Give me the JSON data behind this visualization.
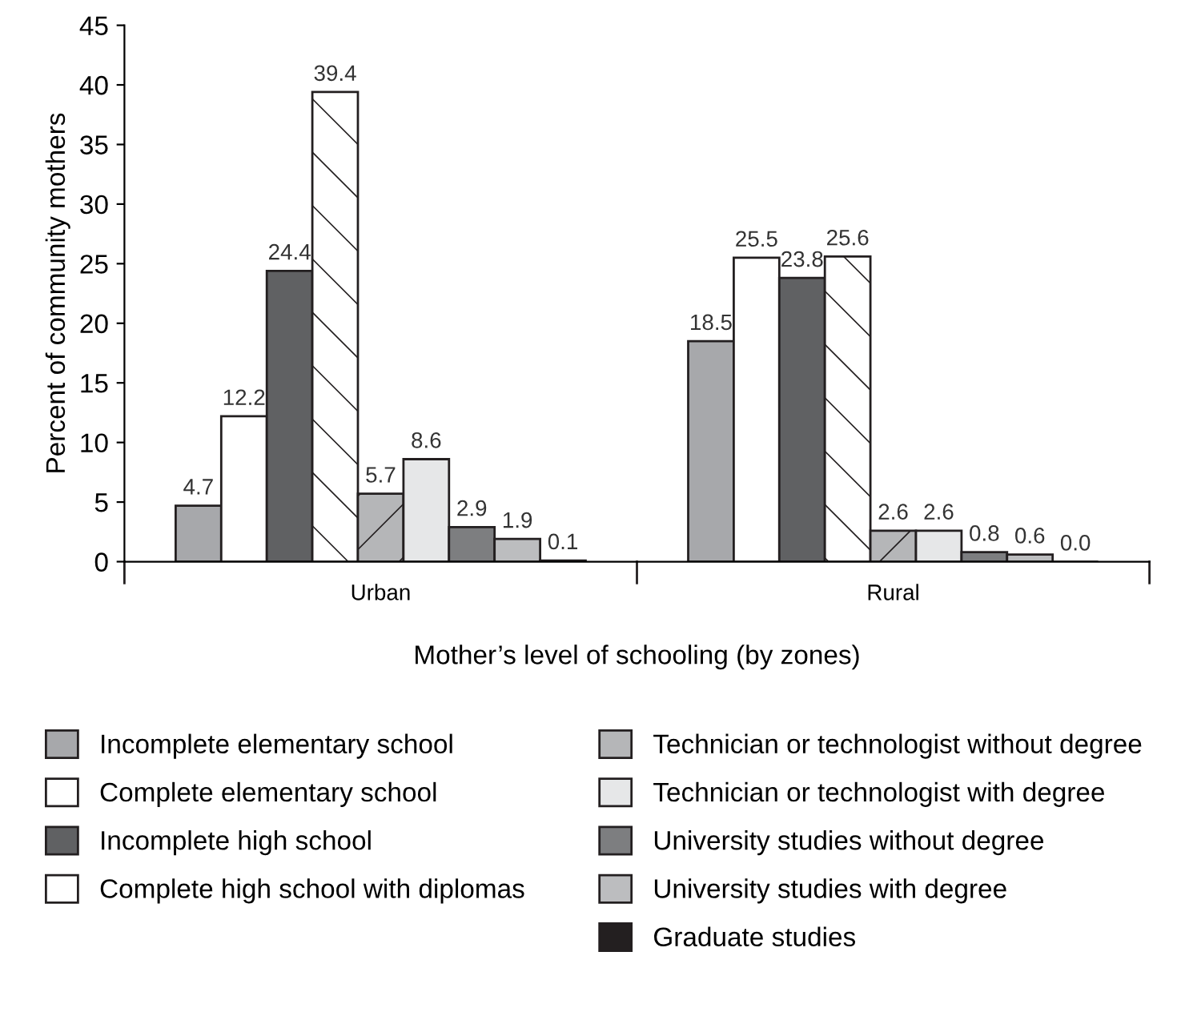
{
  "chart_data": {
    "type": "bar",
    "xlabel": "Mother’s level of schooling (by zones)",
    "ylabel": "Percent of community mothers",
    "categories": [
      "Urban",
      "Rural"
    ],
    "series": [
      {
        "name": "Incomplete elementary school",
        "color": "#a7a8ab",
        "values": [
          4.7,
          18.5
        ],
        "value_labels": [
          "4.7",
          "18.5"
        ]
      },
      {
        "name": "Complete elementary school",
        "color": "#ffffff",
        "values": [
          12.2,
          25.5
        ],
        "value_labels": [
          "12.2",
          "25.5"
        ]
      },
      {
        "name": "Incomplete high school",
        "color": "#606163",
        "values": [
          24.4,
          23.8
        ],
        "value_labels": [
          "24.4",
          "23.8"
        ]
      },
      {
        "name": "Complete high school with diplomas",
        "color": "#ffffff",
        "values": [
          39.4,
          25.6
        ],
        "value_labels": [
          "39.4",
          "25.6"
        ]
      },
      {
        "name": "Technician or technologist without degree",
        "color": "#b5b6b8",
        "values": [
          5.7,
          2.6
        ],
        "value_labels": [
          "5.7",
          "2.6"
        ]
      },
      {
        "name": "Technician or technologist with degree",
        "color": "#e6e7e8",
        "values": [
          8.6,
          2.6
        ],
        "value_labels": [
          "8.6",
          "2.6"
        ]
      },
      {
        "name": "University studies without degree",
        "color": "#7d7e80",
        "values": [
          2.9,
          0.8
        ],
        "value_labels": [
          "2.9",
          "0.8"
        ]
      },
      {
        "name": "University studies with degree",
        "color": "#bcbdbf",
        "values": [
          1.9,
          0.6
        ],
        "value_labels": [
          "1.9",
          "0.6"
        ]
      },
      {
        "name": "Graduate studies",
        "color": "#231f20",
        "values": [
          0.1,
          0.0
        ],
        "value_labels": [
          "0.1",
          "0.0"
        ]
      }
    ],
    "ylim": [
      0,
      45
    ],
    "yticks": [
      0,
      5,
      10,
      15,
      20,
      25,
      30,
      35,
      40,
      45
    ],
    "data_labels": true,
    "grid": false,
    "legend": "bottom"
  }
}
